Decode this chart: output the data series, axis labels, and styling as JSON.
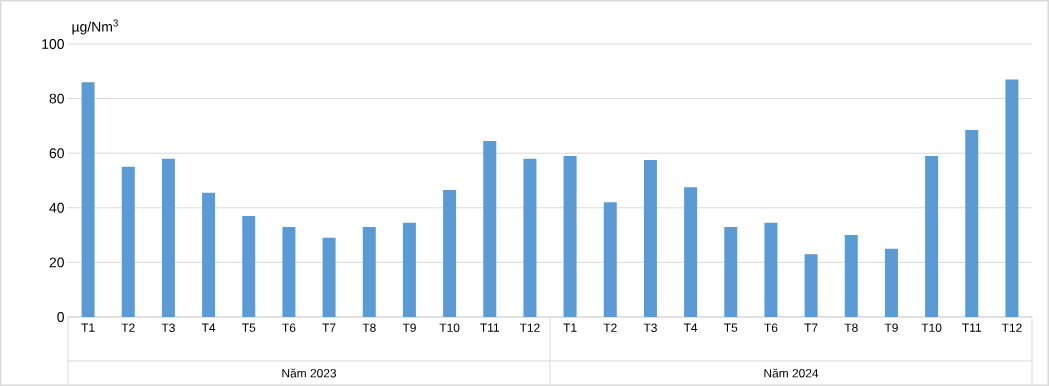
{
  "chart_data": {
    "type": "bar",
    "ylabel": "µg/Nm$^{3}$",
    "categories": [
      "T1",
      "T2",
      "T3",
      "T4",
      "T5",
      "T6",
      "T7",
      "T8",
      "T9",
      "T10",
      "T11",
      "T12",
      "T1",
      "T2",
      "T3",
      "T4",
      "T5",
      "T6",
      "T7",
      "T8",
      "T9",
      "T10",
      "T11",
      "T12"
    ],
    "values": [
      86,
      55,
      58,
      45.5,
      37,
      33,
      29,
      33,
      34.5,
      46.5,
      64.5,
      58,
      59,
      42,
      57.5,
      47.5,
      33,
      34.5,
      23,
      30,
      25,
      59,
      68.5,
      87
    ],
    "color": "#5b9bd5",
    "ylim": [
      0,
      100
    ],
    "yticks": [
      0,
      20,
      40,
      60,
      80,
      100
    ],
    "grid": "y",
    "annotations": [
      "Năm 2023",
      "Năm 2024"
    ]
  }
}
